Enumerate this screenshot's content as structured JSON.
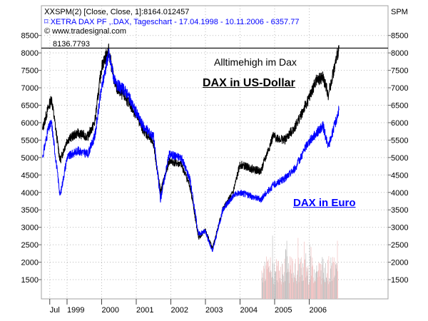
{
  "header": {
    "line1": "SPM(2) [Close, Close, 1]:8164.012457",
    "line2": "XETRA DAX PF ,.DAX, Tageschart - 17.04.1998 - 10.11.2006 - 6357.77",
    "line3": "© www.tradesignal.com",
    "ref_value": "8136.7793",
    "right_axis_label": "SPM"
  },
  "annotations": {
    "ath": "Alltimehigh im Dax",
    "usd": "DAX in US-Dollar",
    "eur": "DAX in Euro"
  },
  "colors": {
    "usd": "#000000",
    "eur": "#0000ff",
    "volume": "#c0c0c0",
    "volume_alt": "#f0c0c0",
    "line_ath": "#000000"
  },
  "chart_data": {
    "type": "line",
    "ylim": [
      1000,
      9000
    ],
    "yticks": [
      1500,
      2000,
      2500,
      3000,
      3500,
      4000,
      4500,
      5000,
      5500,
      6000,
      6500,
      7000,
      7500,
      8000,
      8500
    ],
    "xticks": [
      {
        "t": 1998.5,
        "label": "Jul"
      },
      {
        "t": 1999,
        "label": "1999"
      },
      {
        "t": 2000,
        "label": "2000"
      },
      {
        "t": 2001,
        "label": "2001"
      },
      {
        "t": 2002,
        "label": "2002"
      },
      {
        "t": 2003,
        "label": "2003"
      },
      {
        "t": 2004,
        "label": "2004"
      },
      {
        "t": 2005,
        "label": "2005"
      },
      {
        "t": 2006,
        "label": "2006"
      }
    ],
    "xlim": [
      1998.25,
      2008.25
    ],
    "grid": true,
    "horizontal_line": 8136.7793,
    "series": [
      {
        "name": "DAX in US-Dollar",
        "color": "#000000",
        "x": [
          1998.29,
          1998.45,
          1998.55,
          1998.8,
          1999.0,
          1999.3,
          1999.6,
          1999.8,
          2000.0,
          2000.2,
          2000.4,
          2000.7,
          2000.95,
          2001.2,
          2001.5,
          2001.7,
          2001.95,
          2002.3,
          2002.55,
          2002.8,
          2003.0,
          2003.2,
          2003.5,
          2003.8,
          2004.0,
          2004.3,
          2004.6,
          2004.95,
          2005.3,
          2005.6,
          2005.95,
          2006.2,
          2006.4,
          2006.55,
          2006.86
        ],
        "y": [
          5800,
          6400,
          6700,
          4900,
          5500,
          5700,
          5600,
          6000,
          7600,
          8100,
          7000,
          6700,
          6300,
          5800,
          5400,
          4000,
          4900,
          4800,
          4200,
          2700,
          2900,
          2400,
          3500,
          4000,
          4800,
          4700,
          4600,
          5600,
          5500,
          5900,
          6600,
          7200,
          7300,
          6800,
          8136
        ]
      },
      {
        "name": "DAX in Euro",
        "color": "#0000ff",
        "x": [
          1998.29,
          1998.45,
          1998.55,
          1998.8,
          1999.0,
          1999.3,
          1999.6,
          1999.8,
          2000.0,
          2000.2,
          2000.4,
          2000.7,
          2000.95,
          2001.2,
          2001.5,
          2001.7,
          2001.95,
          2002.3,
          2002.55,
          2002.8,
          2003.0,
          2003.2,
          2003.5,
          2003.8,
          2004.0,
          2004.3,
          2004.6,
          2004.95,
          2005.3,
          2005.6,
          2005.95,
          2006.2,
          2006.4,
          2006.55,
          2006.86
        ],
        "y": [
          5000,
          5800,
          6000,
          3900,
          5000,
          5200,
          5100,
          5600,
          7000,
          8000,
          7100,
          6900,
          6400,
          5900,
          5600,
          3800,
          5100,
          5000,
          4400,
          2800,
          2900,
          2300,
          3500,
          3900,
          4000,
          3900,
          3800,
          4200,
          4400,
          4700,
          5400,
          5700,
          5900,
          5300,
          6357
        ]
      }
    ]
  }
}
